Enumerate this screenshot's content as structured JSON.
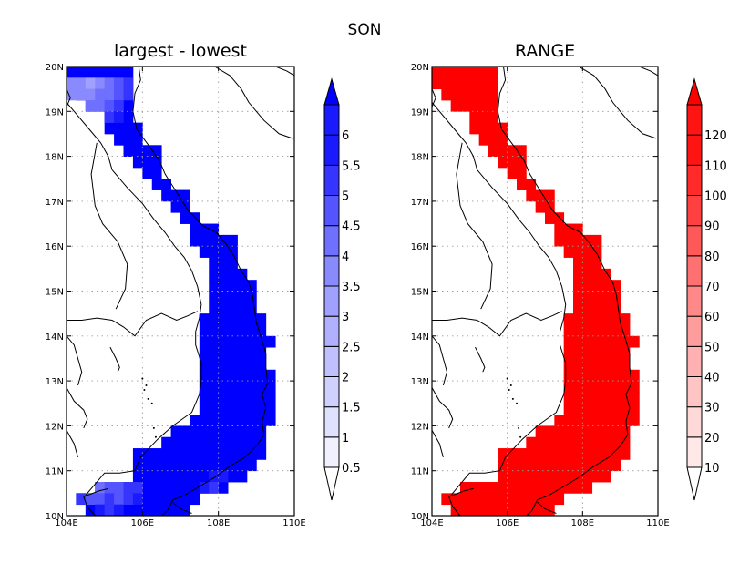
{
  "suptitle": "SON",
  "chart_data": [
    {
      "type": "heatmap",
      "title": "largest - lowest",
      "lon_range": [
        104,
        110
      ],
      "lat_range": [
        10,
        20
      ],
      "xticks": [
        "104E",
        "106E",
        "108E",
        "110E"
      ],
      "yticks": [
        "10N",
        "11N",
        "12N",
        "13N",
        "14N",
        "15N",
        "16N",
        "17N",
        "18N",
        "19N",
        "20N"
      ],
      "grid": true,
      "colorbar": {
        "placement": "right",
        "levels": [
          "0.5",
          "1",
          "1.5",
          "2",
          "2.5",
          "3",
          "3.5",
          "4",
          "4.5",
          "5",
          "5.5",
          "6"
        ],
        "colors": [
          "#ffffff",
          "#f0f0ff",
          "#e0e0ff",
          "#d0d0ff",
          "#c0c0ff",
          "#b0b0ff",
          "#a0a0ff",
          "#8a8aff",
          "#7070ff",
          "#5555ff",
          "#3535ff",
          "#1a1aff",
          "#0000ff"
        ]
      },
      "dominant_value": "> 6",
      "low_value_cells": "north-west coast (19-20N) and south-west coast (10.5-11N) ~4.5-5.5"
    },
    {
      "type": "heatmap",
      "title": "RANGE",
      "lon_range": [
        104,
        110
      ],
      "lat_range": [
        10,
        20
      ],
      "xticks": [
        "104E",
        "106E",
        "108E",
        "110E"
      ],
      "yticks": [
        "10N",
        "11N",
        "12N",
        "13N",
        "14N",
        "15N",
        "16N",
        "17N",
        "18N",
        "19N",
        "20N"
      ],
      "grid": true,
      "colorbar": {
        "placement": "right",
        "levels": [
          "10",
          "20",
          "30",
          "40",
          "50",
          "60",
          "70",
          "80",
          "90",
          "100",
          "110",
          "120"
        ],
        "colors": [
          "#ffffff",
          "#ffe8e8",
          "#ffd8d8",
          "#ffc4c4",
          "#ffb0b0",
          "#ff9c9c",
          "#ff8888",
          "#ff7070",
          "#ff5858",
          "#ff4040",
          "#ff2a2a",
          "#ff1414",
          "#ff0000"
        ]
      },
      "dominant_value": "> 120"
    }
  ]
}
